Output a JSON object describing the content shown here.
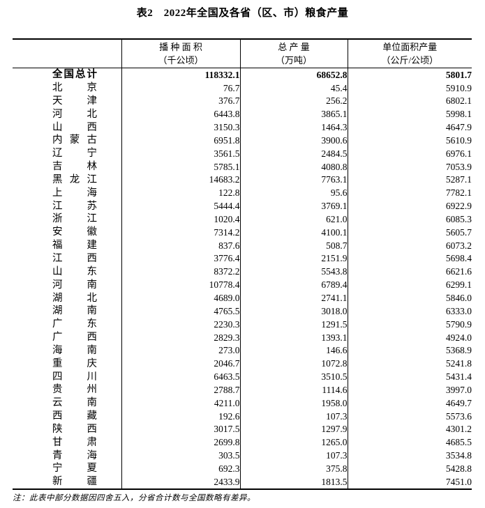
{
  "page": {
    "title": "表2　2022年全国及各省（区、市）粮食产量",
    "note": "注：此表中部分数据因四舍五入，分省合计数与全国数略有差异。"
  },
  "colors": {
    "background": "#ffffff",
    "text": "#000000",
    "border": "#000000"
  },
  "table": {
    "columns": [
      {
        "line1": "",
        "line2": ""
      },
      {
        "line1": "播 种 面 积",
        "line2": "（千公顷）"
      },
      {
        "line1": "总 产 量",
        "line2": "（万吨）"
      },
      {
        "line1": "单位面积产量",
        "line2": "（公斤/公顷）"
      }
    ],
    "rows": [
      {
        "name": "全国总计",
        "sown_area": "118332.1",
        "total_output": "68652.8",
        "yield": "5801.7",
        "bold": true
      },
      {
        "name": "北京",
        "sown_area": "76.7",
        "total_output": "45.4",
        "yield": "5910.9",
        "bold": false
      },
      {
        "name": "天津",
        "sown_area": "376.7",
        "total_output": "256.2",
        "yield": "6802.1",
        "bold": false
      },
      {
        "name": "河北",
        "sown_area": "6443.8",
        "total_output": "3865.1",
        "yield": "5998.1",
        "bold": false
      },
      {
        "name": "山西",
        "sown_area": "3150.3",
        "total_output": "1464.3",
        "yield": "4647.9",
        "bold": false
      },
      {
        "name": "内蒙古",
        "sown_area": "6951.8",
        "total_output": "3900.6",
        "yield": "5610.9",
        "bold": false
      },
      {
        "name": "辽宁",
        "sown_area": "3561.5",
        "total_output": "2484.5",
        "yield": "6976.1",
        "bold": false
      },
      {
        "name": "吉林",
        "sown_area": "5785.1",
        "total_output": "4080.8",
        "yield": "7053.9",
        "bold": false
      },
      {
        "name": "黑龙江",
        "sown_area": "14683.2",
        "total_output": "7763.1",
        "yield": "5287.1",
        "bold": false
      },
      {
        "name": "上海",
        "sown_area": "122.8",
        "total_output": "95.6",
        "yield": "7782.1",
        "bold": false
      },
      {
        "name": "江苏",
        "sown_area": "5444.4",
        "total_output": "3769.1",
        "yield": "6922.9",
        "bold": false
      },
      {
        "name": "浙江",
        "sown_area": "1020.4",
        "total_output": "621.0",
        "yield": "6085.3",
        "bold": false
      },
      {
        "name": "安徽",
        "sown_area": "7314.2",
        "total_output": "4100.1",
        "yield": "5605.7",
        "bold": false
      },
      {
        "name": "福建",
        "sown_area": "837.6",
        "total_output": "508.7",
        "yield": "6073.2",
        "bold": false
      },
      {
        "name": "江西",
        "sown_area": "3776.4",
        "total_output": "2151.9",
        "yield": "5698.4",
        "bold": false
      },
      {
        "name": "山东",
        "sown_area": "8372.2",
        "total_output": "5543.8",
        "yield": "6621.6",
        "bold": false
      },
      {
        "name": "河南",
        "sown_area": "10778.4",
        "total_output": "6789.4",
        "yield": "6299.1",
        "bold": false
      },
      {
        "name": "湖北",
        "sown_area": "4689.0",
        "total_output": "2741.1",
        "yield": "5846.0",
        "bold": false
      },
      {
        "name": "湖南",
        "sown_area": "4765.5",
        "total_output": "3018.0",
        "yield": "6333.0",
        "bold": false
      },
      {
        "name": "广东",
        "sown_area": "2230.3",
        "total_output": "1291.5",
        "yield": "5790.9",
        "bold": false
      },
      {
        "name": "广西",
        "sown_area": "2829.3",
        "total_output": "1393.1",
        "yield": "4924.0",
        "bold": false
      },
      {
        "name": "海南",
        "sown_area": "273.0",
        "total_output": "146.6",
        "yield": "5368.9",
        "bold": false
      },
      {
        "name": "重庆",
        "sown_area": "2046.7",
        "total_output": "1072.8",
        "yield": "5241.8",
        "bold": false
      },
      {
        "name": "四川",
        "sown_area": "6463.5",
        "total_output": "3510.5",
        "yield": "5431.4",
        "bold": false
      },
      {
        "name": "贵州",
        "sown_area": "2788.7",
        "total_output": "1114.6",
        "yield": "3997.0",
        "bold": false
      },
      {
        "name": "云南",
        "sown_area": "4211.0",
        "total_output": "1958.0",
        "yield": "4649.7",
        "bold": false
      },
      {
        "name": "西藏",
        "sown_area": "192.6",
        "total_output": "107.3",
        "yield": "5573.6",
        "bold": false
      },
      {
        "name": "陕西",
        "sown_area": "3017.5",
        "total_output": "1297.9",
        "yield": "4301.2",
        "bold": false
      },
      {
        "name": "甘肃",
        "sown_area": "2699.8",
        "total_output": "1265.0",
        "yield": "4685.5",
        "bold": false
      },
      {
        "name": "青海",
        "sown_area": "303.5",
        "total_output": "107.3",
        "yield": "3534.8",
        "bold": false
      },
      {
        "name": "宁夏",
        "sown_area": "692.3",
        "total_output": "375.8",
        "yield": "5428.8",
        "bold": false
      },
      {
        "name": "新疆",
        "sown_area": "2433.9",
        "total_output": "1813.5",
        "yield": "7451.0",
        "bold": false
      }
    ]
  }
}
